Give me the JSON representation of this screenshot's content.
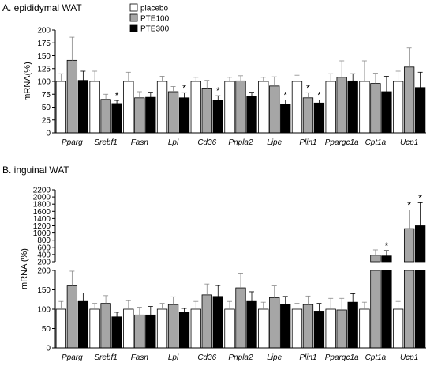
{
  "chart_data": [
    {
      "type": "bar",
      "title": "A. epididymal WAT",
      "ylabel": "mRNA(%)",
      "ylim": [
        0,
        200
      ],
      "yticks": [
        0,
        25,
        50,
        75,
        100,
        125,
        150,
        175,
        200
      ],
      "categories": [
        "Pparg",
        "Srebf1",
        "Fasn",
        "Lpl",
        "Cd36",
        "Pnpla2",
        "Lipe",
        "Plin1",
        "Ppargc1a",
        "Cpt1a",
        "Ucp1"
      ],
      "legend": {
        "placement": "top-left"
      },
      "series": [
        {
          "name": "placebo",
          "color": "#ffffff",
          "values": [
            100,
            100,
            100,
            100,
            100,
            100,
            100,
            100,
            100,
            100,
            100
          ],
          "errors": [
            15,
            20,
            18,
            10,
            8,
            8,
            8,
            12,
            15,
            40,
            20
          ]
        },
        {
          "name": "PTE100",
          "color": "#a6a6a6",
          "values": [
            141,
            65,
            68,
            80,
            87,
            101,
            91,
            68,
            108,
            96,
            128
          ],
          "errors": [
            45,
            10,
            12,
            10,
            15,
            10,
            18,
            10,
            32,
            20,
            37
          ],
          "significant": [
            false,
            false,
            false,
            false,
            false,
            false,
            false,
            true,
            false,
            false,
            false
          ]
        },
        {
          "name": "PTE300",
          "color": "#000000",
          "values": [
            102,
            57,
            69,
            68,
            64,
            71,
            56,
            58,
            101,
            80,
            88
          ],
          "errors": [
            18,
            6,
            10,
            10,
            8,
            8,
            8,
            6,
            14,
            30,
            30
          ],
          "significant": [
            false,
            true,
            false,
            true,
            true,
            false,
            true,
            true,
            false,
            false,
            false
          ]
        }
      ]
    },
    {
      "type": "bar",
      "title": "B. inguinal WAT",
      "ylabel": "mRNA (%)",
      "ylim": [
        0,
        2200
      ],
      "axis_break": {
        "lower_max": 200,
        "upper_min": 200,
        "upper_max": 2200
      },
      "yticks_lower": [
        0,
        50,
        100,
        150,
        200
      ],
      "yticks_upper": [
        200,
        400,
        600,
        800,
        1000,
        1200,
        1400,
        1600,
        1800,
        2000,
        2200
      ],
      "categories": [
        "Pparg",
        "Srebf1",
        "Fasn",
        "Lpl",
        "Cd36",
        "Pnpla2",
        "Lipe",
        "Plin1",
        "Ppargc1a",
        "Cpt1a",
        "Ucp1"
      ],
      "series": [
        {
          "name": "placebo",
          "color": "#ffffff",
          "values": [
            100,
            100,
            100,
            100,
            100,
            100,
            100,
            100,
            100,
            100,
            100
          ],
          "errors": [
            20,
            15,
            22,
            15,
            20,
            20,
            18,
            15,
            28,
            18,
            20
          ]
        },
        {
          "name": "PTE100",
          "color": "#a6a6a6",
          "values": [
            160,
            115,
            85,
            112,
            137,
            155,
            130,
            112,
            98,
            380,
            1120
          ],
          "errors": [
            38,
            20,
            20,
            20,
            28,
            38,
            30,
            22,
            30,
            150,
            520
          ],
          "significant": [
            false,
            false,
            false,
            false,
            false,
            false,
            false,
            false,
            false,
            false,
            true
          ]
        },
        {
          "name": "PTE300",
          "color": "#000000",
          "values": [
            120,
            80,
            85,
            92,
            133,
            120,
            113,
            95,
            118,
            360,
            1200
          ],
          "errors": [
            22,
            12,
            22,
            10,
            28,
            25,
            20,
            20,
            22,
            150,
            640
          ],
          "significant": [
            false,
            false,
            false,
            false,
            false,
            false,
            false,
            false,
            false,
            true,
            true
          ]
        }
      ]
    }
  ]
}
